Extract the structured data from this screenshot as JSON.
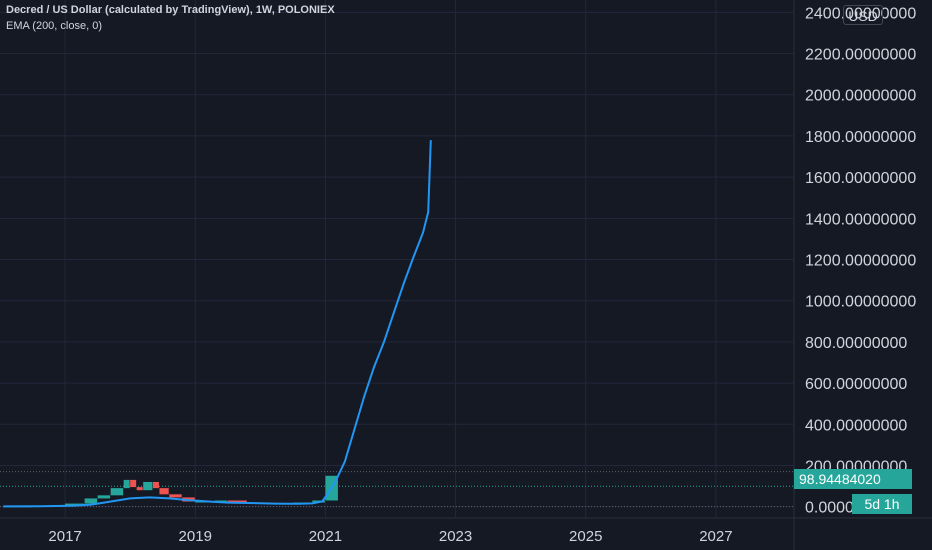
{
  "header": {
    "symbol_title": "Decred / US Dollar (calculated by TradingView), 1W, POLONIEX",
    "indicator": "EMA (200, close, 0)"
  },
  "currency": "USD",
  "last_price": "98.94484020",
  "countdown": "5d 1h",
  "colors": {
    "background": "#151924",
    "grid": "#23273a",
    "axis_text": "#d1d4dc",
    "ema_line": "#2196f3",
    "up_candle": "#26a69a",
    "down_candle": "#ef5350",
    "price_tag": "#26a69a"
  },
  "chart_data": {
    "type": "line",
    "title": "Decred / US Dollar (calculated by TradingView), 1W, POLONIEX",
    "x_ticks": [
      "2017",
      "2019",
      "2021",
      "2023",
      "2025",
      "2027"
    ],
    "y_ticks": [
      "0.00000000",
      "200.00000000",
      "400.00000000",
      "600.00000000",
      "800.00000000",
      "1000.00000000",
      "1200.00000000",
      "1400.00000000",
      "1600.00000000",
      "1800.00000000",
      "2000.00000000",
      "2200.00000000",
      "2400.00000000"
    ],
    "xlim": [
      2016.0,
      2028.2
    ],
    "ylim": [
      -55,
      2460
    ],
    "grid": true,
    "last_value": 98.9448402,
    "series": [
      {
        "name": "EMA (200, close, 0)",
        "points": [
          [
            2016.05,
            1.5
          ],
          [
            2016.6,
            2
          ],
          [
            2017.1,
            4
          ],
          [
            2017.4,
            10
          ],
          [
            2017.6,
            20
          ],
          [
            2017.8,
            30
          ],
          [
            2018.0,
            40
          ],
          [
            2018.3,
            45
          ],
          [
            2018.6,
            40
          ],
          [
            2018.9,
            32
          ],
          [
            2019.2,
            25
          ],
          [
            2019.5,
            20
          ],
          [
            2019.8,
            18
          ],
          [
            2020.0,
            17
          ],
          [
            2020.2,
            15
          ],
          [
            2020.4,
            14
          ],
          [
            2020.6,
            14
          ],
          [
            2020.8,
            16
          ],
          [
            2020.95,
            25
          ],
          [
            2021.05,
            70
          ],
          [
            2021.15,
            120
          ],
          [
            2021.3,
            220
          ],
          [
            2021.45,
            380
          ],
          [
            2021.6,
            540
          ],
          [
            2021.75,
            680
          ],
          [
            2021.9,
            800
          ],
          [
            2022.05,
            940
          ],
          [
            2022.2,
            1080
          ],
          [
            2022.35,
            1210
          ],
          [
            2022.5,
            1330
          ],
          [
            2022.58,
            1430
          ],
          [
            2022.62,
            1780
          ]
        ]
      },
      {
        "name": "Price",
        "points": [
          [
            2016.05,
            1
          ],
          [
            2016.5,
            2
          ],
          [
            2017.0,
            5
          ],
          [
            2017.3,
            15
          ],
          [
            2017.5,
            40
          ],
          [
            2017.7,
            55
          ],
          [
            2017.9,
            90
          ],
          [
            2018.0,
            130
          ],
          [
            2018.1,
            95
          ],
          [
            2018.2,
            80
          ],
          [
            2018.35,
            120
          ],
          [
            2018.45,
            90
          ],
          [
            2018.6,
            60
          ],
          [
            2018.8,
            45
          ],
          [
            2019.0,
            25
          ],
          [
            2019.3,
            25
          ],
          [
            2019.5,
            30
          ],
          [
            2019.8,
            20
          ],
          [
            2020.2,
            15
          ],
          [
            2020.5,
            18
          ],
          [
            2020.8,
            20
          ],
          [
            2021.0,
            30
          ],
          [
            2021.2,
            150
          ]
        ]
      }
    ]
  }
}
